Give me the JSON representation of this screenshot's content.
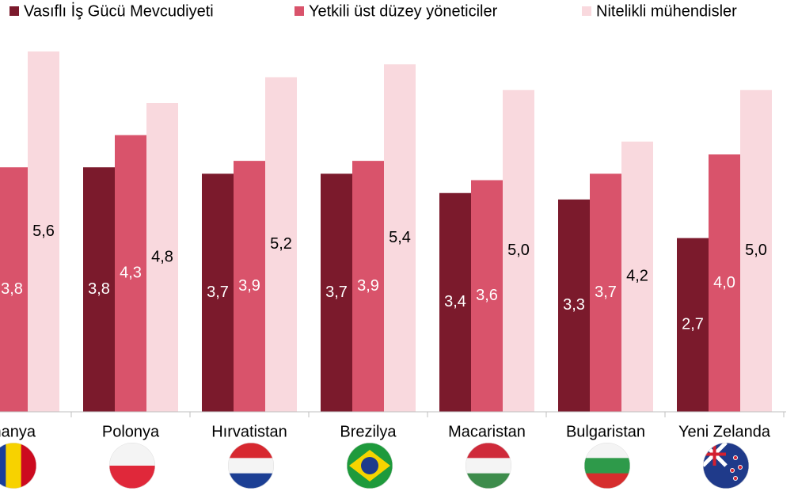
{
  "chart_data": {
    "type": "bar",
    "categories": [
      "manya",
      "Polonya",
      "Hırvatistan",
      "Brezilya",
      "Macaristan",
      "Bulgaristan",
      "Yeni Zelanda"
    ],
    "series": [
      {
        "name": "Vasıflı İş Gücü Mevcudiyeti",
        "color": "#7b1a2c",
        "values": [
          null,
          3.8,
          3.7,
          3.7,
          3.4,
          3.3,
          2.7
        ],
        "value_labels": [
          null,
          "3,8",
          "3,7",
          "3,7",
          "3,4",
          "3,3",
          "2,7"
        ]
      },
      {
        "name": "Yetkili üst düzey yöneticiler",
        "color": "#d9536b",
        "values": [
          3.8,
          4.3,
          3.9,
          3.9,
          3.6,
          3.7,
          4.0
        ],
        "value_labels": [
          "3,8",
          "4,3",
          "3,9",
          "3,9",
          "3,6",
          "3,7",
          "4,0"
        ]
      },
      {
        "name": "Nitelikli mühendisler",
        "color": "#f9d9de",
        "values": [
          5.6,
          4.8,
          5.2,
          5.4,
          5.0,
          4.2,
          5.0
        ],
        "value_labels": [
          "5,6",
          "4,8",
          "5,2",
          "5,4",
          "5,0",
          "4,2",
          "5,0"
        ]
      }
    ],
    "ylim": [
      0,
      6.4
    ],
    "legend": "top"
  }
}
